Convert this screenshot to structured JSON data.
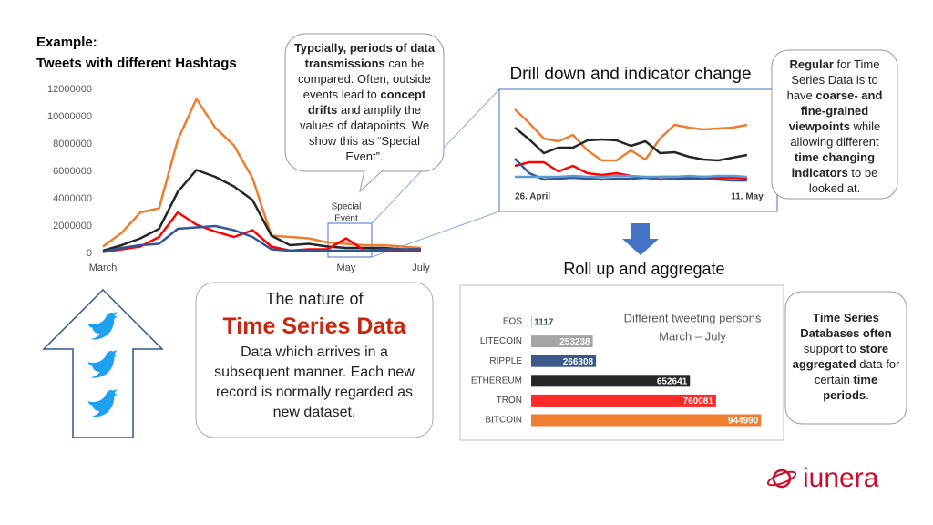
{
  "chart_data": [
    {
      "type": "line",
      "title": [
        "Example:",
        "Tweets with different Hashtags"
      ],
      "categories": [
        "March",
        null,
        null,
        null,
        null,
        null,
        null,
        null,
        null,
        null,
        null,
        null,
        null,
        "May",
        null,
        null,
        null,
        "July"
      ],
      "series": [
        {
          "color": "#ed7d31",
          "values": [
            500000,
            1500000,
            3000000,
            3300000,
            8300000,
            11300000,
            9200000,
            7900000,
            5500000,
            1300000,
            1200000,
            1100000,
            800000,
            700000,
            600000,
            600000,
            500000,
            400000
          ]
        },
        {
          "color": "#262626",
          "values": [
            200000,
            600000,
            1100000,
            1800000,
            4500000,
            6100000,
            5600000,
            4900000,
            3900000,
            1300000,
            600000,
            700000,
            500000,
            400000,
            400000,
            400000,
            300000,
            300000
          ]
        },
        {
          "color": "#ff0000",
          "values": [
            100000,
            300000,
            500000,
            1200000,
            3000000,
            2100000,
            1600000,
            1200000,
            1700000,
            500000,
            200000,
            300000,
            300000,
            1100000,
            200000,
            200000,
            200000,
            200000
          ]
        },
        {
          "color": "#2f5597",
          "values": [
            100000,
            400000,
            600000,
            700000,
            1800000,
            1900000,
            2000000,
            1700000,
            1200000,
            300000,
            200000,
            200000,
            200000,
            200000,
            200000,
            300000,
            300000,
            300000
          ]
        }
      ],
      "ylim": [
        0,
        12000000
      ],
      "yticks": [
        0,
        2000000,
        4000000,
        6000000,
        8000000,
        10000000,
        12000000
      ],
      "grid": false,
      "annotation": [
        "Special",
        "Event"
      ]
    },
    {
      "type": "line",
      "title": "Drill down and indicator change",
      "categories": [
        "26. April",
        null,
        null,
        null,
        null,
        null,
        null,
        null,
        null,
        null,
        null,
        null,
        null,
        null,
        null,
        null,
        "11. May"
      ],
      "series": [
        {
          "color": "#ed7d31",
          "values": [
            90,
            75,
            58,
            55,
            62,
            45,
            34,
            34,
            45,
            35,
            58,
            73,
            70,
            68,
            69,
            70,
            73
          ]
        },
        {
          "color": "#262626",
          "values": [
            70,
            57,
            42,
            48,
            48,
            56,
            57,
            56,
            50,
            55,
            42,
            43,
            38,
            35,
            34,
            37,
            40
          ]
        },
        {
          "color": "#ff0000",
          "values": [
            28,
            32,
            32,
            22,
            28,
            20,
            18,
            20,
            17,
            15,
            16,
            16,
            15,
            16,
            15,
            15,
            14
          ]
        },
        {
          "color": "#2f5597",
          "values": [
            36,
            20,
            13,
            14,
            15,
            14,
            13,
            14,
            14,
            15,
            13,
            14,
            14,
            14,
            13,
            12,
            12
          ]
        },
        {
          "color": "#5b9bd5",
          "values": [
            16,
            16,
            16,
            16,
            17,
            16,
            16,
            17,
            17,
            16,
            16,
            16,
            17,
            16,
            17,
            17,
            16
          ]
        }
      ],
      "ylim": [
        0,
        100
      ]
    },
    {
      "type": "hbar",
      "title": [
        "Different  tweeting persons",
        "March – July"
      ],
      "categories": [
        "EOS",
        "LITECOIN",
        "RIPPLE",
        "ETHEREUM",
        "TRON",
        "BITCOIN"
      ],
      "values": [
        1117,
        253238,
        266308,
        652641,
        760081,
        944990
      ],
      "colors": [
        "#44546a",
        "#a5a5a5",
        "#3b5a8a",
        "#262626",
        "#ff2a2a",
        "#ed7d31"
      ],
      "xlim": [
        0,
        1000000
      ]
    }
  ],
  "callouts": {
    "top": [
      {
        "text": "Typcially, periods of data transmissions",
        "bold": true
      },
      {
        "text": " can be compared. Often, outside events lead to ",
        "bold": false
      },
      {
        "text": "concept drifts",
        "bold": true
      },
      {
        "text": " and amplify the values of datapoints. We show this as  “Special Event”.",
        "bold": false
      }
    ],
    "right_top": [
      {
        "text": "Regular",
        "bold": true
      },
      {
        "text": " for Time Series Data is to have ",
        "bold": false
      },
      {
        "text": "coarse- and fine-grained viewpoints",
        "bold": true
      },
      {
        "text": " while allowing different ",
        "bold": false
      },
      {
        "text": "time changing indicators",
        "bold": true
      },
      {
        "text": " to be looked at.",
        "bold": false
      }
    ],
    "right_bottom": [
      {
        "text": "Time Series Databases often",
        "bold": true
      },
      {
        "text": " support to ",
        "bold": false
      },
      {
        "text": "store aggregated",
        "bold": true
      },
      {
        "text": " data for certain ",
        "bold": false
      },
      {
        "text": "time periods",
        "bold": true
      },
      {
        "text": ".",
        "bold": false
      }
    ]
  },
  "center": {
    "heading": "The nature of",
    "title": "Time Series Data",
    "body": "Data which arrives in a subsequent manner. Each new record is normally regarded as new dataset."
  },
  "roll_up": "Roll up and aggregate",
  "logo": "iunera"
}
